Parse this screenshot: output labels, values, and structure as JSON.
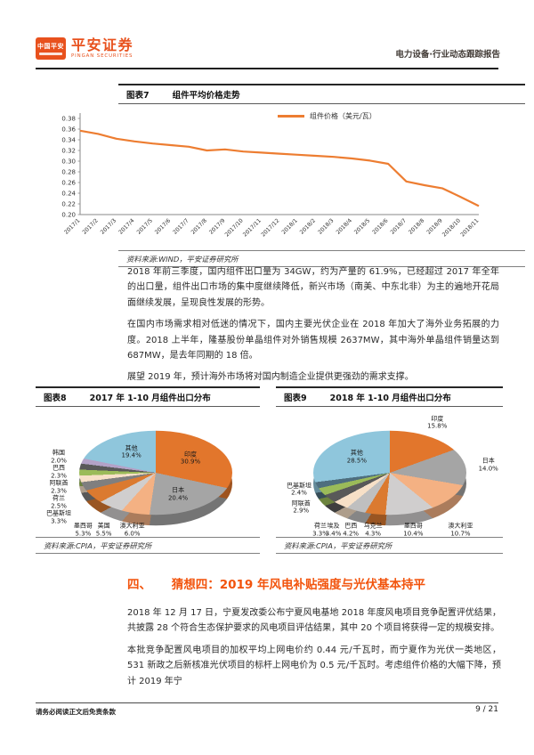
{
  "header": {
    "logo_badge": "中国平安",
    "brand": "平安证券",
    "brand_sub": "PINGAN SECURITIES",
    "report_type": "电力设备·行业动态跟踪报告"
  },
  "figures": {
    "fig7": {
      "tag": "图表7",
      "title": "组件平均价格走势",
      "source": "资料来源:WIND，平安证券研究所"
    },
    "fig8": {
      "tag": "图表8",
      "title": "2017 年 1-10 月组件出口分布",
      "source": "资料来源:CPIA，平安证券研究所"
    },
    "fig9": {
      "tag": "图表9",
      "title": "2018 年 1-10 月组件出口分布",
      "source": "资料来源:CPIA，平安证券研究所"
    }
  },
  "body": {
    "p1": "2018 年前三季度，国内组件出口量为 34GW，约为产量的 61.9%，已经超过 2017 年全年的出口量，组件出口市场的集中度继续降低，新兴市场（南美、中东北非）为主的遍地开花局面继续发展，呈现良性发展的形势。",
    "p2": "在国内市场需求相对低迷的情况下，国内主要光伏企业在 2018 年加大了海外业务拓展的力度。2018 上半年，隆基股份单晶组件对外销售规模 2637MW，其中海外单晶组件销量达到 687MW，是去年同期的 18 倍。",
    "p3": "展望 2019 年，预计海外市场将对国内制造企业提供更强劲的需求支撑。"
  },
  "section4": {
    "number": "四、",
    "title": "猜想四：2019 年风电补贴强度与光伏基本持平"
  },
  "body2": {
    "p4": "2018 年 12 月 17 日，宁夏发改委公布宁夏风电基地 2018 年度风电项目竞争配置评优结果，共披露 28 个符合生态保护要求的风电项目评估结果，其中 20 个项目将获得一定的规模安排。",
    "p5": "本批竞争配置风电项目的加权平均上网电价约 0.44 元/千瓦时，而宁夏作为光伏一类地区，531 新政之后新核准光伏项目的标杆上网电价为 0.5 元/千瓦时。考虑组件价格的大幅下降，预计 2019 年宁"
  },
  "footer": {
    "disclaimer": "请务必阅读正文后免责条款",
    "page_indicator": "9 / 21"
  },
  "colors": {
    "brand_orange": "#e8511d",
    "heading_orange": "#f2540d",
    "line_orange": "#ed7d31"
  },
  "chart_data": [
    {
      "id": "fig7-module-price",
      "type": "line",
      "title": "组件平均价格走势",
      "x": [
        "2017/1",
        "2017/2",
        "2017/3",
        "2017/4",
        "2017/5",
        "2017/6",
        "2017/7",
        "2017/8",
        "2017/9",
        "2017/10",
        "2017/11",
        "2017/12",
        "2018/1",
        "2018/2",
        "2018/3",
        "2018/4",
        "2018/5",
        "2018/6",
        "2018/7",
        "2018/8",
        "2018/9",
        "2018/10",
        "2018/11"
      ],
      "series": [
        {
          "name": "组件价格（美元/瓦）",
          "color": "#ed7d31",
          "values": [
            0.357,
            0.351,
            0.342,
            0.337,
            0.333,
            0.33,
            0.327,
            0.32,
            0.322,
            0.318,
            0.316,
            0.314,
            0.312,
            0.31,
            0.308,
            0.305,
            0.301,
            0.295,
            0.262,
            0.255,
            0.249,
            0.233,
            0.216
          ]
        }
      ],
      "ylim": [
        0.2,
        0.38
      ],
      "ytick_step": 0.02,
      "grid": false,
      "legend_position": "top-center"
    },
    {
      "id": "fig8-export-2017",
      "type": "pie",
      "title": "2017 年 1-10 月组件出口分布",
      "unit": "percent",
      "labels": [
        "印度",
        "日本",
        "澳大利亚",
        "美国",
        "墨西哥",
        "巴基斯坦",
        "荷兰",
        "阿联酋",
        "巴西",
        "韩国",
        "其他"
      ],
      "values": [
        30.9,
        20.4,
        6.0,
        5.5,
        5.3,
        3.3,
        2.5,
        2.3,
        2.3,
        2.0,
        19.4
      ],
      "colors": [
        "#e2762c",
        "#a5a5a5",
        "#f4b183",
        "#d0cece",
        "#db7a30",
        "#7f7f7f",
        "#f7e0c7",
        "#9bbb59",
        "#595959",
        "#b3a2c7",
        "#8fc6dc"
      ],
      "start_angle_deg": 0,
      "clockwise": true,
      "inside_label_min_pct": 19
    },
    {
      "id": "fig9-export-2018",
      "type": "pie",
      "title": "2018 年 1-10 月组件出口分布",
      "unit": "percent",
      "labels": [
        "印度",
        "日本",
        "澳大利亚",
        "墨西哥",
        "乌克兰",
        "巴西",
        "埃及",
        "荷兰",
        "阿联酋",
        "巴基斯坦",
        "其他"
      ],
      "values": [
        15.8,
        14.0,
        10.7,
        10.4,
        4.3,
        4.2,
        3.4,
        3.3,
        2.9,
        2.4,
        28.5
      ],
      "colors": [
        "#e2762c",
        "#a5a5a5",
        "#f4b183",
        "#d0cece",
        "#db7a30",
        "#bfbfbf",
        "#f7e0c7",
        "#595959",
        "#9bbb59",
        "#4e6e7e",
        "#8fc6dc"
      ],
      "start_angle_deg": 0,
      "clockwise": true,
      "inside_label_min_pct": 20
    }
  ]
}
